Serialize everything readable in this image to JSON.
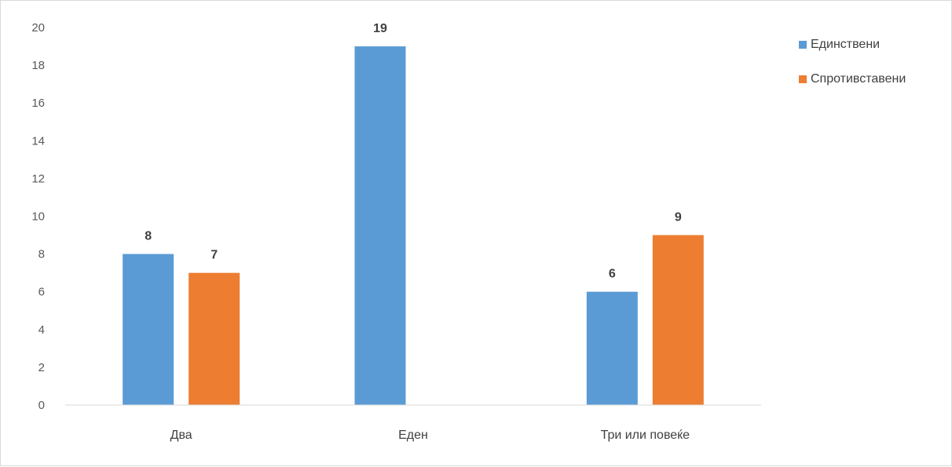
{
  "chart_data": {
    "type": "bar",
    "categories": [
      "Два",
      "Еден",
      "Три или повеќе"
    ],
    "series": [
      {
        "name": "Единствени",
        "color": "#5b9bd5",
        "values": [
          8,
          19,
          6
        ]
      },
      {
        "name": "Спротивставени",
        "color": "#ed7d31",
        "values": [
          7,
          null,
          9
        ]
      }
    ],
    "ylim": [
      0,
      20
    ],
    "yticks": [
      0,
      2,
      4,
      6,
      8,
      10,
      12,
      14,
      16,
      18,
      20
    ],
    "grid": false,
    "data_labels": true,
    "legend": "right",
    "axis_color": "#d9d9d9"
  }
}
